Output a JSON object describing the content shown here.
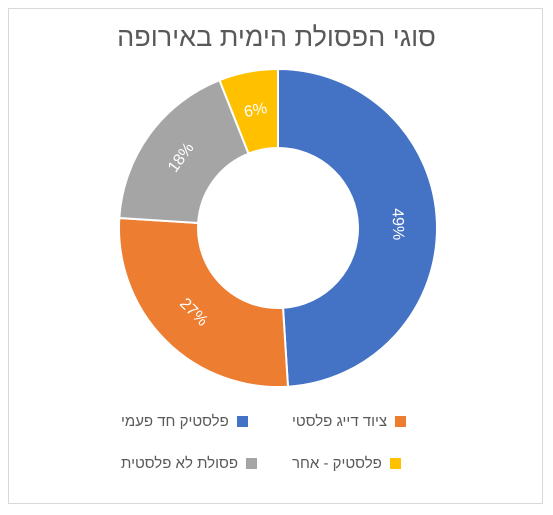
{
  "chart_data": {
    "type": "pie",
    "subtype": "doughnut",
    "title": "סוגי הפסולת הימית באירופה",
    "slices": [
      {
        "name": "פלסטיק חד פעמי",
        "value": 49,
        "label": "49%",
        "color": "#4472C4"
      },
      {
        "name": "ציוד דייג פלסטי",
        "value": 27,
        "label": "27%",
        "color": "#ED7D31"
      },
      {
        "name": "פסולת לא פלסטית",
        "value": 18,
        "label": "18%",
        "color": "#A5A5A5"
      },
      {
        "name": "פלסטיק - אחר",
        "value": 6,
        "label": "6%",
        "color": "#FFC000"
      }
    ],
    "legend_position": "bottom"
  }
}
